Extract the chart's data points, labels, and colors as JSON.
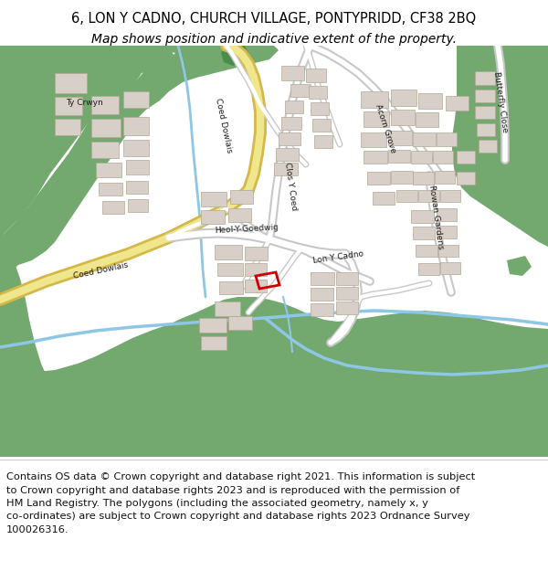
{
  "title_line1": "6, LON Y CADNO, CHURCH VILLAGE, PONTYPRIDD, CF38 2BQ",
  "title_line2": "Map shows position and indicative extent of the property.",
  "footer_lines": [
    "Contains OS data © Crown copyright and database right 2021. This information is subject",
    "to Crown copyright and database rights 2023 and is reproduced with the permission of",
    "HM Land Registry. The polygons (including the associated geometry, namely x, y",
    "co-ordinates) are subject to Crown copyright and database rights 2023 Ordnance Survey",
    "100026316."
  ],
  "title_fontsize": 10.5,
  "subtitle_fontsize": 10,
  "footer_fontsize": 8.2,
  "map_bg_color": "#f0ece6",
  "green_color": "#73a96e",
  "dark_green": "#4a8c4a",
  "road_white": "#ffffff",
  "road_grey": "#c8c8c8",
  "yellow_fill": "#f0e68c",
  "yellow_outline": "#d4b84a",
  "water_color": "#8ec6e6",
  "building_color": "#d8d0c8",
  "building_edge": "#b0a898",
  "plot_color": "#cc0000",
  "title_bg": "#ffffff",
  "footer_bg": "#ffffff",
  "fig_width": 6.0,
  "fig_height": 6.25,
  "dpi": 100
}
